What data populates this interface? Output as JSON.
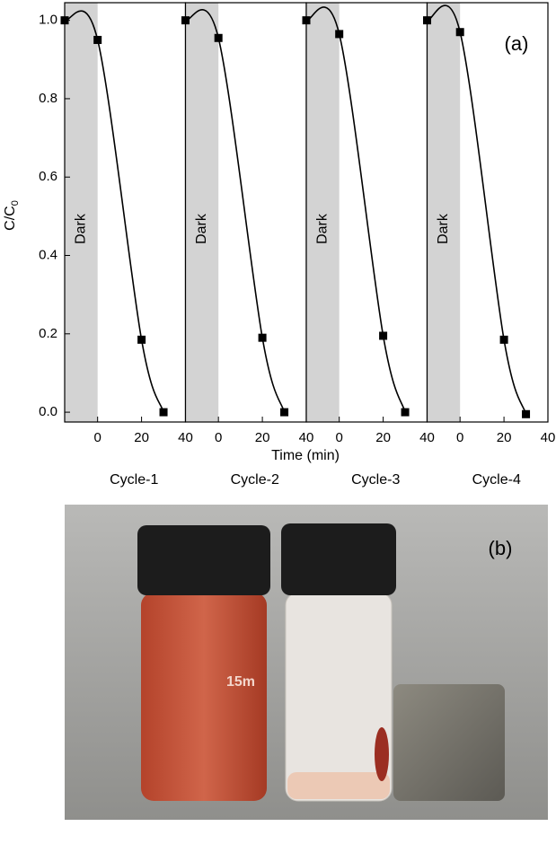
{
  "chart_data": {
    "type": "scatter",
    "title": "(a)",
    "xlabel": "Time (min)",
    "ylabel": "C/C",
    "ylabel_sub": "0",
    "xlim": [
      -15,
      40
    ],
    "xticks": [
      0,
      20,
      40
    ],
    "ylim": [
      -0.025,
      1.045
    ],
    "yticks": [
      {
        "value": 0,
        "label": "0.0"
      },
      0.2,
      0.4,
      0.6,
      0.8,
      {
        "value": 1,
        "label": "1.0"
      }
    ],
    "shade": {
      "label": "Dark",
      "from": -15,
      "to": 0,
      "color": "#d3d3d3"
    },
    "color": "#000000",
    "panels": [
      {
        "name": "Cycle-1",
        "x": [
          -15,
          0,
          20,
          30
        ],
        "values": [
          1.0,
          0.95,
          0.185,
          0.0
        ]
      },
      {
        "name": "Cycle-2",
        "x": [
          -15,
          0,
          20,
          30
        ],
        "values": [
          1.0,
          0.955,
          0.19,
          0.0
        ]
      },
      {
        "name": "Cycle-3",
        "x": [
          -15,
          0,
          20,
          30
        ],
        "values": [
          1.0,
          0.965,
          0.195,
          0.0
        ]
      },
      {
        "name": "Cycle-4",
        "x": [
          -15,
          0,
          20,
          30
        ],
        "values": [
          1.0,
          0.97,
          0.185,
          -0.005
        ]
      }
    ]
  },
  "photo": {
    "label": "(b)",
    "vial_text": "15m"
  }
}
